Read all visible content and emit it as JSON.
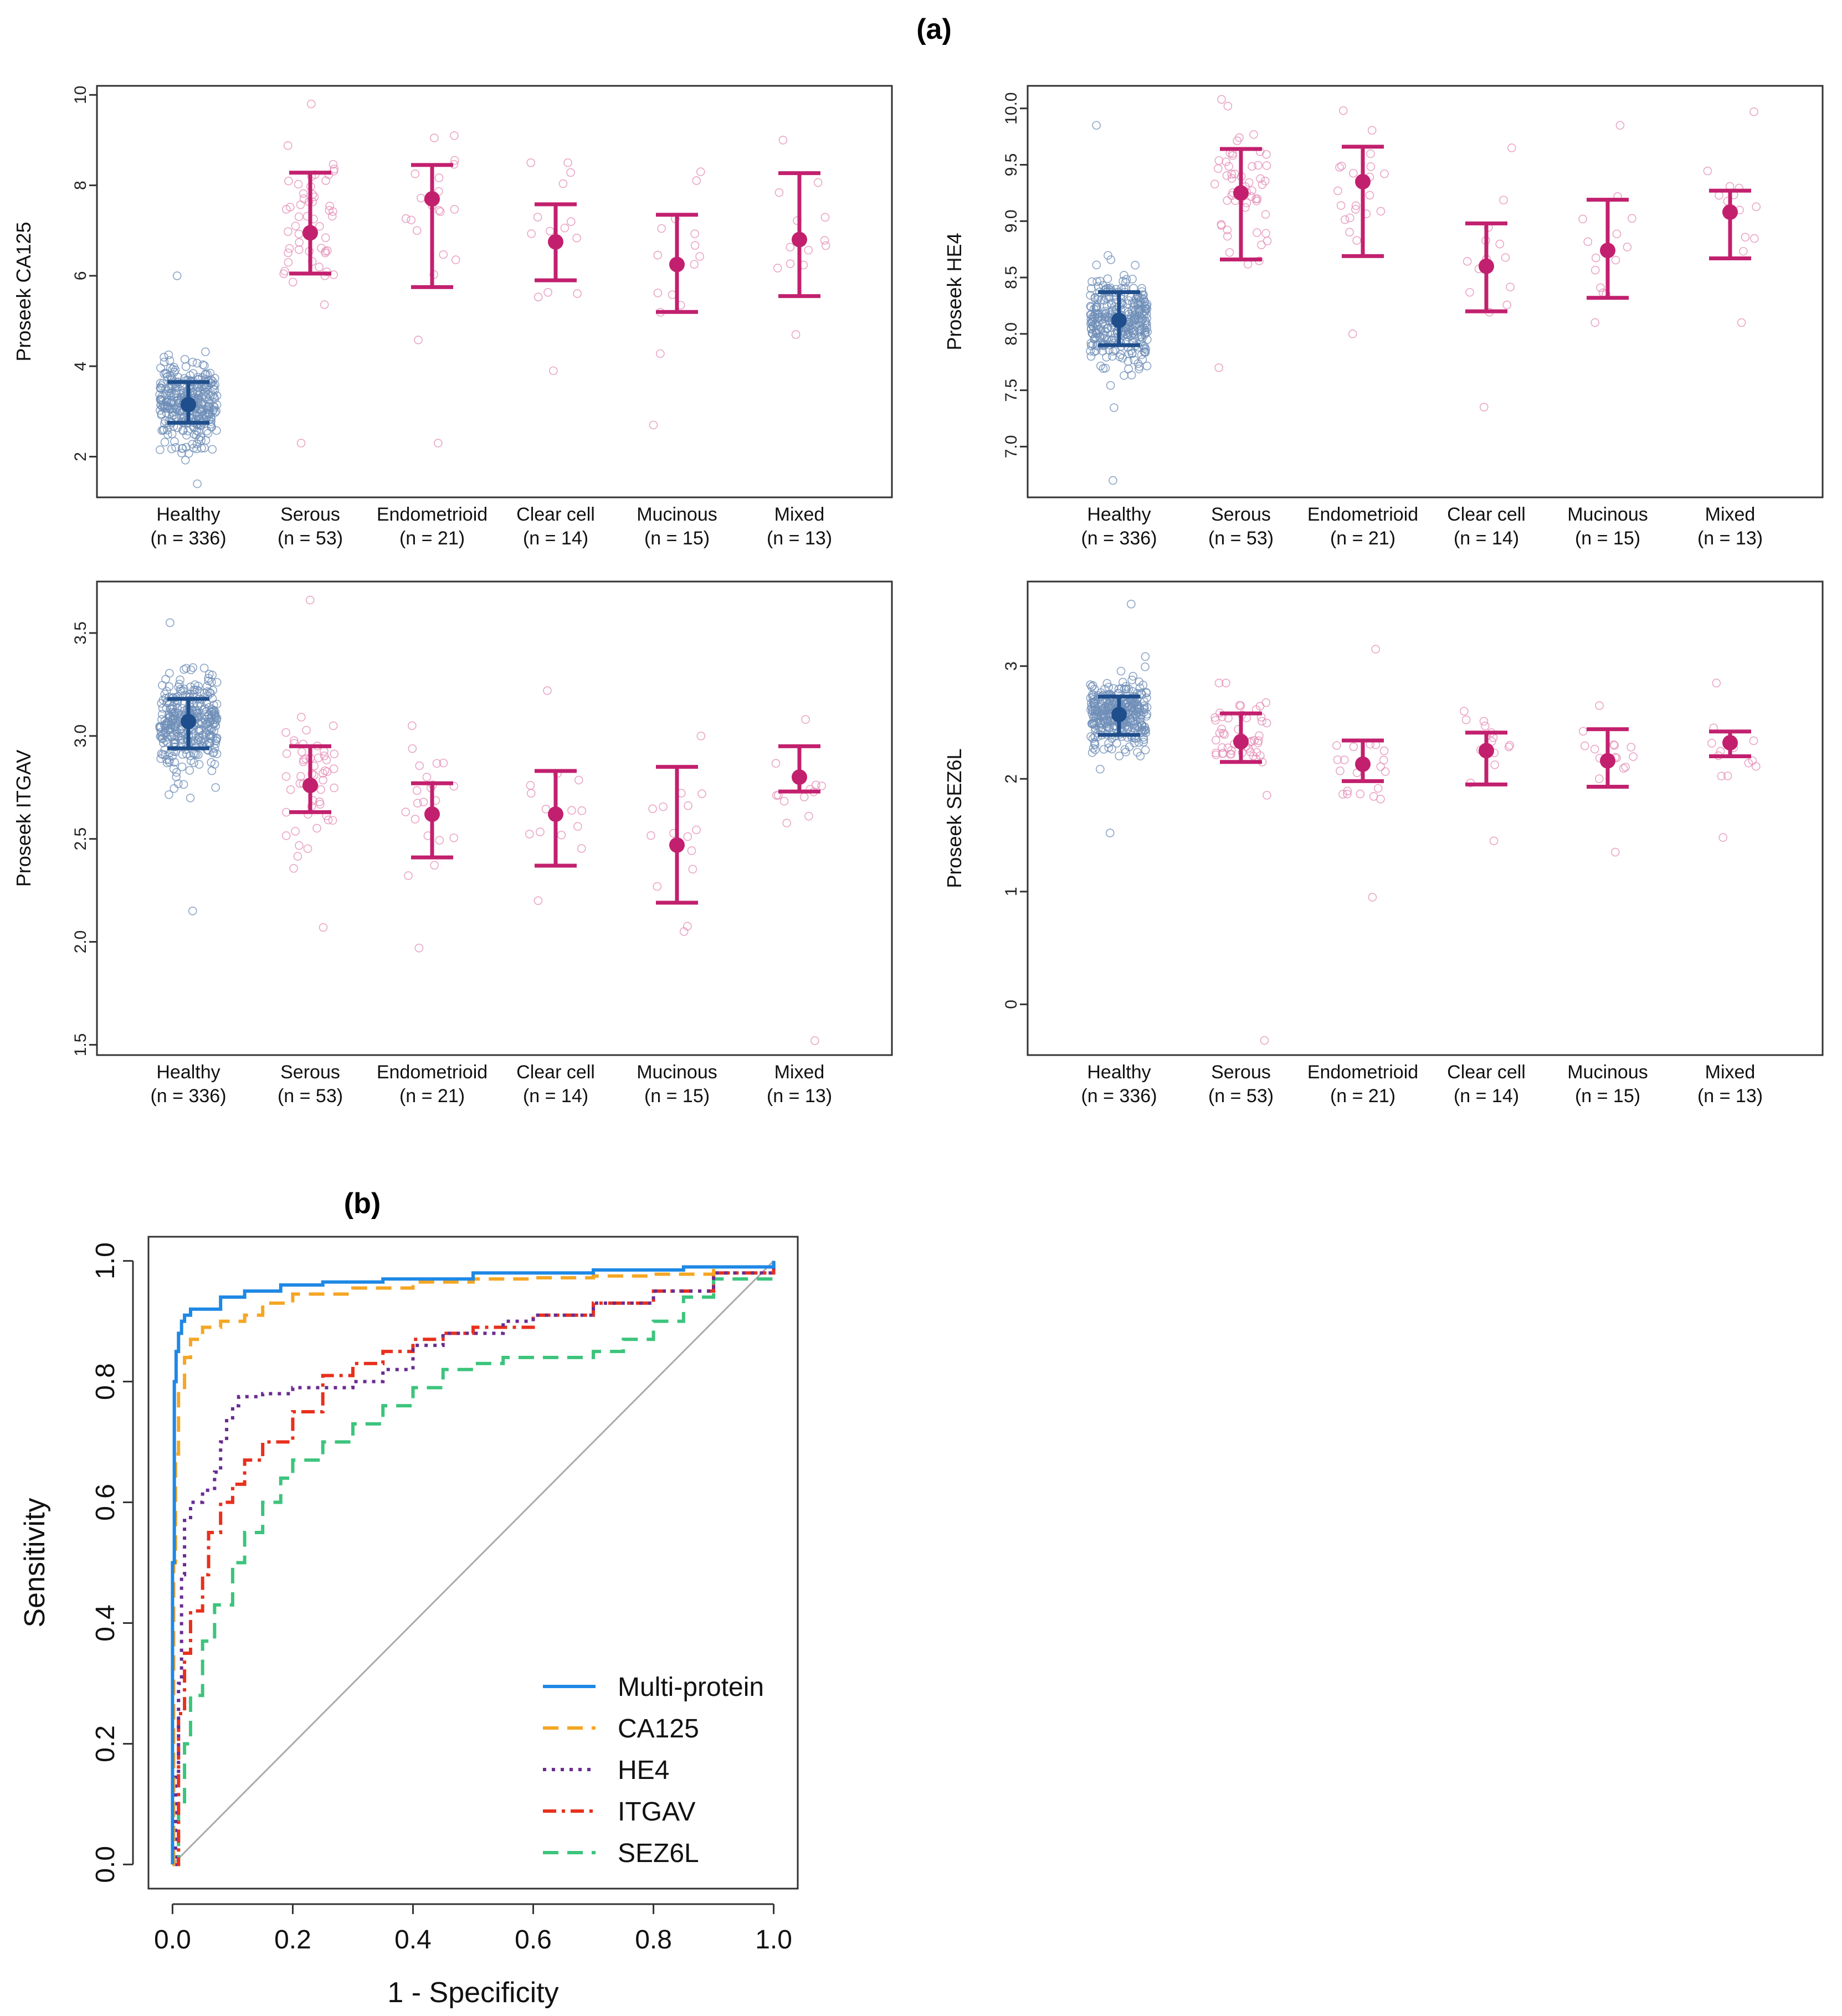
{
  "figure": {
    "panel_a_label": "(a)",
    "panel_b_label": "(b)"
  },
  "colors": {
    "healthy": "#1F4E8C",
    "cancer": "#C2206E",
    "multi_protein": "#1E88E5",
    "ca125": "#F5A623",
    "he4": "#6A2C91",
    "itgav": "#E8301C",
    "sez6l": "#3CC47C",
    "diagonal": "#AAAAAA"
  },
  "chart_data": [
    {
      "type": "scatter",
      "id": "ca125",
      "ylabel": "Proseek CA125",
      "ylim": [
        1.1,
        10.2
      ],
      "yticks": [
        2,
        4,
        6,
        8,
        10
      ],
      "groups": [
        "Healthy",
        "Serous",
        "Endometrioid",
        "Clear cell",
        "Mucinous",
        "Mixed"
      ],
      "group_n": [
        "(n = 336)",
        "(n = 53)",
        "(n = 21)",
        "(n = 14)",
        "(n = 15)",
        "(n = 13)"
      ],
      "counts": [
        336,
        53,
        21,
        14,
        15,
        13
      ],
      "center": [
        3.15,
        6.95,
        7.7,
        6.75,
        6.25,
        6.8
      ],
      "spread": [
        0.85,
        1.6,
        1.7,
        1.2,
        1.4,
        1.3
      ],
      "low": [
        2.75,
        6.05,
        5.75,
        5.9,
        5.2,
        5.55
      ],
      "high": [
        3.65,
        8.28,
        8.45,
        7.58,
        7.35,
        8.27
      ],
      "data_min": [
        1.4,
        2.3,
        2.3,
        3.9,
        2.7,
        4.7
      ],
      "data_max": [
        6.0,
        9.8,
        9.1,
        8.5,
        8.3,
        9.0
      ]
    },
    {
      "type": "scatter",
      "id": "he4",
      "ylabel": "Proseek HE4",
      "ylim": [
        6.55,
        10.2
      ],
      "yticks": [
        7.0,
        7.5,
        8.0,
        8.5,
        9.0,
        9.5,
        10.0
      ],
      "groups": [
        "Healthy",
        "Serous",
        "Endometrioid",
        "Clear cell",
        "Mucinous",
        "Mixed"
      ],
      "group_n": [
        "(n = 336)",
        "(n = 53)",
        "(n = 21)",
        "(n = 14)",
        "(n = 15)",
        "(n = 13)"
      ],
      "counts": [
        336,
        53,
        21,
        14,
        15,
        13
      ],
      "center": [
        8.12,
        9.25,
        9.35,
        8.6,
        8.74,
        9.08
      ],
      "spread": [
        0.35,
        0.55,
        0.6,
        0.5,
        0.55,
        0.5
      ],
      "low": [
        7.9,
        8.66,
        8.69,
        8.2,
        8.32,
        8.67
      ],
      "high": [
        8.37,
        9.64,
        9.66,
        8.98,
        9.19,
        9.27
      ],
      "data_min": [
        6.7,
        7.7,
        8.0,
        7.35,
        8.1,
        8.1
      ],
      "data_max": [
        9.85,
        10.08,
        9.98,
        9.65,
        9.85,
        9.97
      ]
    },
    {
      "type": "scatter",
      "id": "itgav",
      "ylabel": "Proseek ITGAV",
      "ylim": [
        1.45,
        3.75
      ],
      "yticks": [
        1.5,
        2.0,
        2.5,
        3.0,
        3.5
      ],
      "groups": [
        "Healthy",
        "Serous",
        "Endometrioid",
        "Clear cell",
        "Mucinous",
        "Mixed"
      ],
      "group_n": [
        "(n = 336)",
        "(n = 53)",
        "(n = 21)",
        "(n = 14)",
        "(n = 15)",
        "(n = 13)"
      ],
      "counts": [
        336,
        53,
        21,
        14,
        15,
        13
      ],
      "center": [
        3.07,
        2.76,
        2.62,
        2.62,
        2.47,
        2.8
      ],
      "spread": [
        0.2,
        0.28,
        0.28,
        0.25,
        0.3,
        0.2
      ],
      "low": [
        2.94,
        2.63,
        2.41,
        2.37,
        2.19,
        2.73
      ],
      "high": [
        3.18,
        2.95,
        2.77,
        2.83,
        2.85,
        2.95
      ],
      "data_min": [
        2.15,
        2.07,
        1.97,
        2.2,
        2.05,
        1.52
      ],
      "data_max": [
        3.55,
        3.66,
        3.05,
        3.22,
        3.0,
        3.08
      ]
    },
    {
      "type": "scatter",
      "id": "sez6l",
      "ylabel": "Proseek SEZ6L",
      "ylim": [
        -0.45,
        3.75
      ],
      "yticks": [
        0,
        1,
        2,
        3
      ],
      "groups": [
        "Healthy",
        "Serous",
        "Endometrioid",
        "Clear cell",
        "Mucinous",
        "Mixed"
      ],
      "group_n": [
        "(n = 336)",
        "(n = 53)",
        "(n = 21)",
        "(n = 14)",
        "(n = 15)",
        "(n = 13)"
      ],
      "counts": [
        336,
        53,
        21,
        14,
        15,
        13
      ],
      "center": [
        2.57,
        2.33,
        2.13,
        2.25,
        2.16,
        2.32
      ],
      "spread": [
        0.28,
        0.35,
        0.35,
        0.3,
        0.3,
        0.25
      ],
      "low": [
        2.39,
        2.15,
        1.98,
        1.95,
        1.93,
        2.2
      ],
      "high": [
        2.73,
        2.58,
        2.34,
        2.41,
        2.44,
        2.42
      ],
      "data_min": [
        1.52,
        -0.32,
        0.95,
        1.45,
        1.35,
        1.48
      ],
      "data_max": [
        3.55,
        2.85,
        3.15,
        2.6,
        2.65,
        2.85
      ]
    },
    {
      "type": "line",
      "id": "roc",
      "title": "(b)",
      "xlabel": "1 - Specificity",
      "ylabel": "Sensitivity",
      "xlim": [
        -0.04,
        1.04
      ],
      "ylim": [
        -0.04,
        1.04
      ],
      "xticks": [
        "0.0",
        "0.2",
        "0.4",
        "0.6",
        "0.8",
        "1.0"
      ],
      "yticks": [
        "0.0",
        "0.2",
        "0.4",
        "0.6",
        "0.8",
        "1.0"
      ],
      "series": [
        {
          "name": "Multi-protein",
          "color_key": "multi_protein",
          "dash": "solid",
          "x": [
            0,
            0,
            0.003,
            0.006,
            0.01,
            0.015,
            0.02,
            0.03,
            0.05,
            0.08,
            0.12,
            0.18,
            0.25,
            0.35,
            0.5,
            0.7,
            0.85,
            1.0
          ],
          "y": [
            0,
            0.5,
            0.8,
            0.85,
            0.88,
            0.9,
            0.91,
            0.92,
            0.92,
            0.94,
            0.95,
            0.96,
            0.965,
            0.97,
            0.98,
            0.985,
            0.99,
            1.0
          ]
        },
        {
          "name": "CA125",
          "color_key": "ca125",
          "dash": "long",
          "x": [
            0,
            0.002,
            0.005,
            0.01,
            0.02,
            0.03,
            0.05,
            0.08,
            0.12,
            0.15,
            0.2,
            0.3,
            0.4,
            0.5,
            0.6,
            0.7,
            0.8,
            0.9,
            1.0
          ],
          "y": [
            0,
            0.5,
            0.68,
            0.78,
            0.84,
            0.87,
            0.89,
            0.9,
            0.91,
            0.93,
            0.945,
            0.955,
            0.965,
            0.97,
            0.972,
            0.975,
            0.978,
            0.99,
            1.0
          ]
        },
        {
          "name": "HE4",
          "color_key": "he4",
          "dash": "dot",
          "x": [
            0,
            0.005,
            0.01,
            0.015,
            0.02,
            0.03,
            0.05,
            0.07,
            0.08,
            0.09,
            0.1,
            0.11,
            0.15,
            0.2,
            0.25,
            0.3,
            0.35,
            0.4,
            0.45,
            0.5,
            0.55,
            0.6,
            0.7,
            0.8,
            0.9,
            1.0
          ],
          "y": [
            0,
            0.15,
            0.3,
            0.48,
            0.57,
            0.6,
            0.62,
            0.65,
            0.7,
            0.74,
            0.76,
            0.775,
            0.78,
            0.79,
            0.79,
            0.8,
            0.82,
            0.86,
            0.88,
            0.88,
            0.9,
            0.91,
            0.93,
            0.95,
            0.98,
            1.0
          ]
        },
        {
          "name": "ITGAV",
          "color_key": "itgav",
          "dash": "dashdot",
          "x": [
            0,
            0.01,
            0.02,
            0.03,
            0.05,
            0.06,
            0.08,
            0.1,
            0.12,
            0.15,
            0.2,
            0.25,
            0.3,
            0.35,
            0.4,
            0.45,
            0.5,
            0.6,
            0.7,
            0.8,
            0.9,
            1.0
          ],
          "y": [
            0,
            0.25,
            0.35,
            0.42,
            0.48,
            0.55,
            0.6,
            0.63,
            0.67,
            0.7,
            0.75,
            0.81,
            0.83,
            0.85,
            0.87,
            0.88,
            0.89,
            0.91,
            0.93,
            0.95,
            0.98,
            1.0
          ]
        },
        {
          "name": "SEZ6L",
          "color_key": "sez6l",
          "dash": "long",
          "x": [
            0,
            0.01,
            0.02,
            0.03,
            0.05,
            0.07,
            0.1,
            0.12,
            0.15,
            0.18,
            0.2,
            0.25,
            0.3,
            0.35,
            0.4,
            0.45,
            0.5,
            0.55,
            0.6,
            0.7,
            0.75,
            0.8,
            0.85,
            0.9,
            1.0
          ],
          "y": [
            0,
            0.1,
            0.2,
            0.28,
            0.37,
            0.43,
            0.5,
            0.55,
            0.6,
            0.64,
            0.67,
            0.7,
            0.73,
            0.76,
            0.79,
            0.82,
            0.83,
            0.84,
            0.84,
            0.85,
            0.87,
            0.9,
            0.94,
            0.97,
            1.0
          ]
        }
      ]
    }
  ]
}
